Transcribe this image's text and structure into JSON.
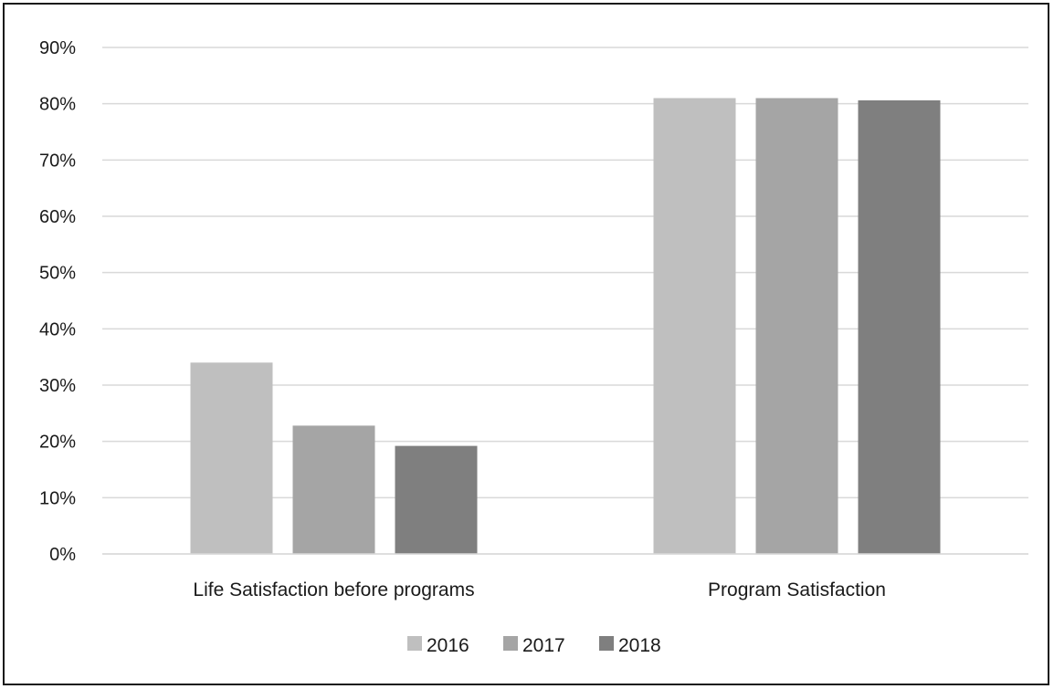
{
  "chart_data": {
    "type": "bar",
    "title": "",
    "xlabel": "",
    "ylabel": "",
    "categories": [
      "Life Satisfaction before programs",
      "Program Satisfaction"
    ],
    "series": [
      {
        "name": "2016",
        "values": [
          0.34,
          0.81
        ],
        "color": "#bfbfbf"
      },
      {
        "name": "2017",
        "values": [
          0.228,
          0.81
        ],
        "color": "#a5a5a5"
      },
      {
        "name": "2018",
        "values": [
          0.192,
          0.806
        ],
        "color": "#7f7f7f"
      }
    ],
    "ylim": [
      0,
      0.9
    ],
    "yticks": [
      0,
      0.1,
      0.2,
      0.3,
      0.4,
      0.5,
      0.6,
      0.7,
      0.8,
      0.9
    ],
    "ytick_labels": [
      "0%",
      "10%",
      "20%",
      "30%",
      "40%",
      "50%",
      "60%",
      "70%",
      "80%",
      "90%"
    ],
    "grid": true,
    "legend": "bottom-center",
    "gridline_color": "#d9d9d9"
  }
}
